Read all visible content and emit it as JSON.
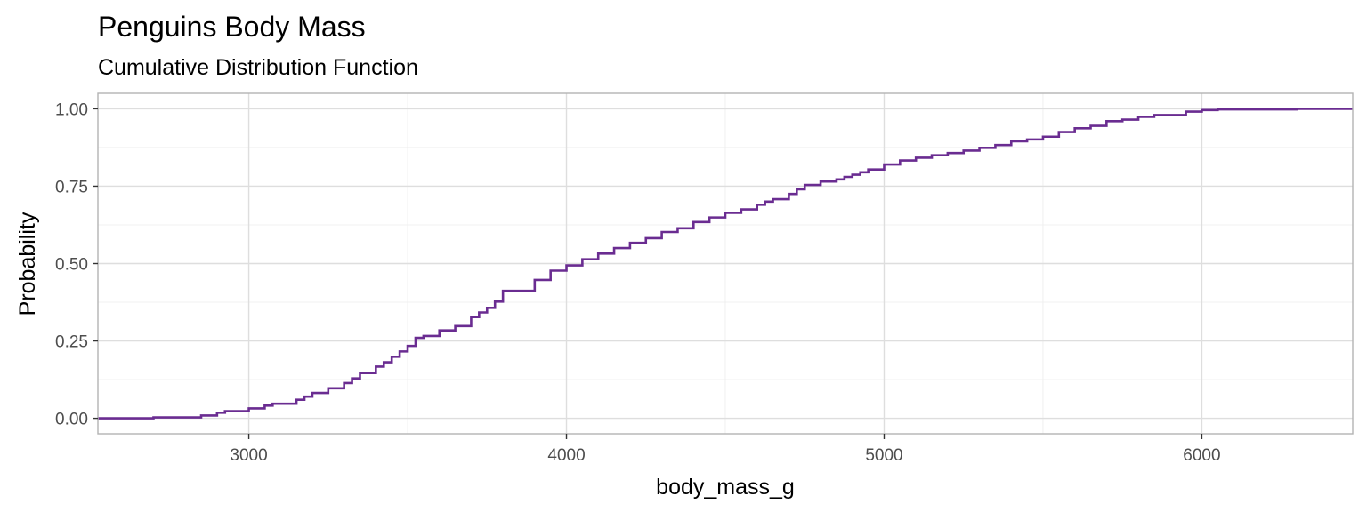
{
  "chart_data": {
    "type": "line",
    "step": true,
    "title": "Penguins Body Mass",
    "subtitle": "Cumulative Distribution Function",
    "xlabel": "body_mass_g",
    "ylabel": "Probability",
    "xlim": [
      2525,
      6475
    ],
    "ylim": [
      -0.05,
      1.05
    ],
    "xticks": [
      3000,
      4000,
      5000,
      6000
    ],
    "xtick_labels": [
      "3000",
      "4000",
      "5000",
      "6000"
    ],
    "yticks": [
      0.0,
      0.25,
      0.5,
      0.75,
      1.0
    ],
    "ytick_labels": [
      "0.00",
      "0.25",
      "0.50",
      "0.75",
      "1.00"
    ],
    "grid": true,
    "line_color": "#6a2c91",
    "series": [
      {
        "x": [
          2525,
          2700,
          2850,
          2900,
          2925,
          3000,
          3050,
          3075,
          3150,
          3175,
          3200,
          3250,
          3300,
          3325,
          3350,
          3400,
          3425,
          3450,
          3475,
          3500,
          3525,
          3550,
          3600,
          3650,
          3700,
          3725,
          3750,
          3775,
          3800,
          3900,
          3950,
          4000,
          4050,
          4100,
          4150,
          4200,
          4250,
          4300,
          4350,
          4400,
          4450,
          4500,
          4550,
          4600,
          4625,
          4650,
          4700,
          4725,
          4750,
          4800,
          4850,
          4875,
          4900,
          4925,
          4950,
          5000,
          5050,
          5100,
          5150,
          5200,
          5250,
          5300,
          5350,
          5400,
          5450,
          5500,
          5550,
          5600,
          5650,
          5700,
          5750,
          5800,
          5850,
          5950,
          6000,
          6050,
          6300,
          6475
        ],
        "y": [
          0.0,
          0.003,
          0.009,
          0.018,
          0.023,
          0.032,
          0.041,
          0.047,
          0.06,
          0.07,
          0.082,
          0.097,
          0.114,
          0.129,
          0.146,
          0.167,
          0.181,
          0.199,
          0.216,
          0.234,
          0.26,
          0.266,
          0.284,
          0.298,
          0.327,
          0.342,
          0.357,
          0.377,
          0.412,
          0.447,
          0.477,
          0.494,
          0.514,
          0.532,
          0.55,
          0.567,
          0.582,
          0.602,
          0.614,
          0.634,
          0.649,
          0.664,
          0.675,
          0.69,
          0.7,
          0.708,
          0.725,
          0.74,
          0.754,
          0.765,
          0.772,
          0.78,
          0.787,
          0.795,
          0.804,
          0.82,
          0.833,
          0.842,
          0.85,
          0.857,
          0.865,
          0.874,
          0.883,
          0.895,
          0.901,
          0.91,
          0.925,
          0.937,
          0.945,
          0.96,
          0.965,
          0.974,
          0.98,
          0.991,
          0.996,
          0.998,
          1.0,
          1.0
        ]
      }
    ]
  }
}
